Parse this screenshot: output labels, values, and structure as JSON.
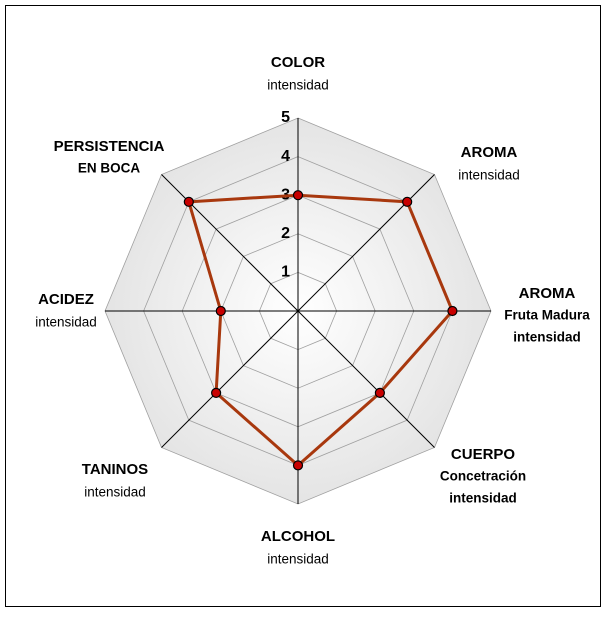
{
  "chart_data": {
    "type": "radar",
    "categories": [
      {
        "title": [
          "COLOR"
        ],
        "subtitle": "intensidad"
      },
      {
        "title": [
          "AROMA"
        ],
        "subtitle": "intensidad"
      },
      {
        "title": [
          "AROMA",
          "Fruta Madura",
          "intensidad"
        ]
      },
      {
        "title": [
          "CUERPO",
          "Concetración",
          "intensidad"
        ]
      },
      {
        "title": [
          "ALCOHOL"
        ],
        "subtitle": "intensidad"
      },
      {
        "title": [
          "TANINOS"
        ],
        "subtitle": "intensidad"
      },
      {
        "title": [
          "ACIDEZ"
        ],
        "subtitle": "intensidad"
      },
      {
        "title": [
          "PERSISTENCIA",
          "EN BOCA"
        ]
      }
    ],
    "values": [
      3,
      4,
      4,
      3,
      4,
      3,
      2,
      4
    ],
    "color": "#a8380e",
    "marker_color": "#c80000",
    "rlim": [
      0,
      5
    ],
    "rticks": [
      1,
      2,
      3,
      4,
      5
    ],
    "grid": true
  }
}
